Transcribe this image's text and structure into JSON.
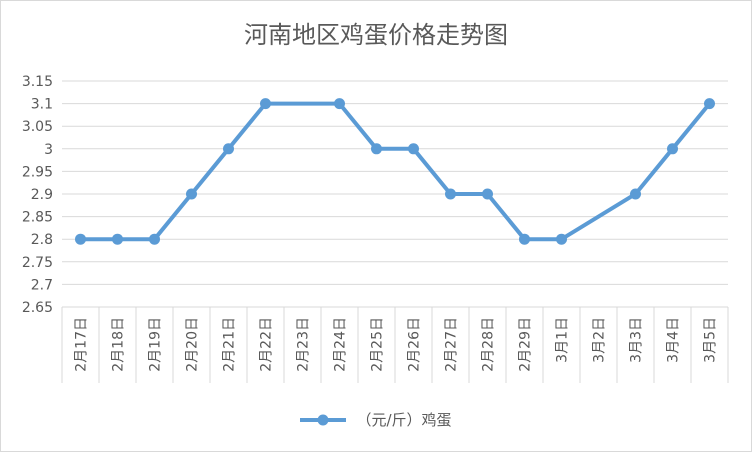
{
  "chart_data": {
    "type": "line",
    "title": "河南地区鸡蛋价格走势图",
    "categories": [
      "2月17日",
      "2月18日",
      "2月19日",
      "2月20日",
      "2月21日",
      "2月22日",
      "2月23日",
      "2月24日",
      "2月25日",
      "2月26日",
      "2月27日",
      "2月28日",
      "2月29日",
      "3月1日",
      "3月2日",
      "3月3日",
      "3月4日",
      "3月5日"
    ],
    "series": [
      {
        "name": "（元/斤）鸡蛋",
        "values": [
          2.8,
          2.8,
          2.8,
          2.9,
          3.0,
          3.1,
          null,
          3.1,
          3.0,
          3.0,
          2.9,
          2.9,
          2.8,
          2.8,
          null,
          2.9,
          3.0,
          3.1
        ]
      }
    ],
    "yticks": [
      "2.65",
      "2.7",
      "2.75",
      "2.8",
      "2.85",
      "2.9",
      "2.95",
      "3",
      "3.05",
      "3.1",
      "3.15"
    ],
    "ylim": [
      2.65,
      3.15
    ],
    "grid": true,
    "legend_position": "bottom",
    "line_color": "#5b9bd5",
    "grid_color": "#d9d9d9",
    "text_color": "#595959"
  }
}
